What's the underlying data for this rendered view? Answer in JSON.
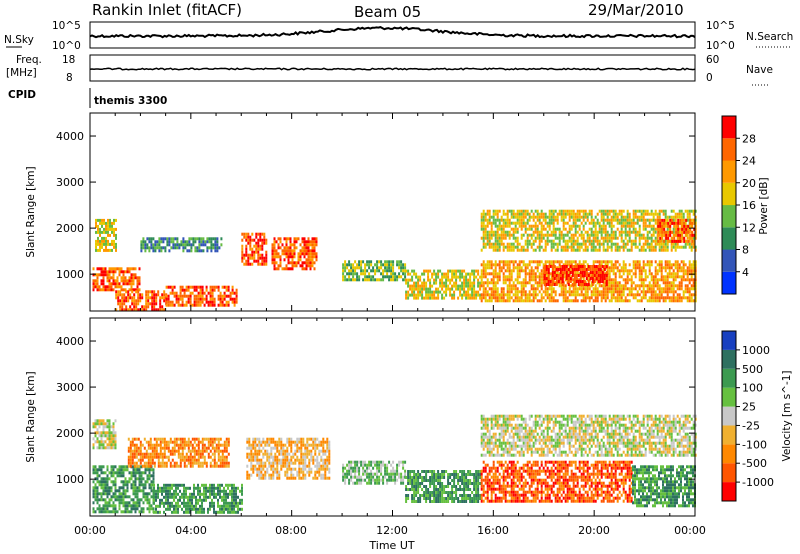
{
  "header": {
    "station": "Rankin Inlet (fitACF)",
    "beam": "Beam 05",
    "date": "29/Mar/2010"
  },
  "noise_panel": {
    "left_label": "N.Sky",
    "right_label": "N.Search",
    "left_ticks": [
      "10^5",
      "10^0"
    ],
    "right_ticks": [
      "10^5",
      "10^0"
    ]
  },
  "freq_panel": {
    "left_label_1": "Freq.",
    "left_label_2": "[MHz]",
    "right_label": "Nave",
    "left_ticks": [
      "18",
      "8"
    ],
    "right_ticks": [
      "60",
      "0"
    ]
  },
  "cpid_panel": {
    "label": "CPID",
    "value": "themis 3300"
  },
  "axes": {
    "x_ticks": [
      "00:00",
      "04:00",
      "08:00",
      "12:00",
      "16:00",
      "20:00",
      "00:00"
    ],
    "x_label": "Time UT",
    "y_label": "Slant Range [km]",
    "y_ticks": [
      "1000",
      "2000",
      "3000",
      "4000"
    ]
  },
  "power_scale": {
    "label": "Power [dB]",
    "ticks": [
      "4",
      "8",
      "12",
      "16",
      "20",
      "24",
      "28"
    ],
    "colors": [
      "#0033ff",
      "#3355b8",
      "#2e8b57",
      "#66bb44",
      "#e8c800",
      "#ff9900",
      "#ff6600",
      "#ff0000"
    ]
  },
  "velocity_scale": {
    "label": "Velocity [m s^-1]",
    "ticks": [
      "1000",
      "500",
      "100",
      "25",
      "-25",
      "-100",
      "-500",
      "-1000"
    ],
    "colors": [
      "#1840c0",
      "#2e7060",
      "#3c9a50",
      "#66c040",
      "#c8c8c8",
      "#f0b030",
      "#ff8800",
      "#ff5500",
      "#ff0000"
    ]
  },
  "chart_data": [
    {
      "type": "heatmap",
      "name": "power",
      "x_range_hours": [
        0,
        24
      ],
      "y_range_km": [
        200,
        4500
      ],
      "blobs": [
        {
          "t": [
            0.1,
            2.0
          ],
          "r": [
            650,
            1150
          ],
          "level": 6
        },
        {
          "t": [
            0.2,
            1.0
          ],
          "r": [
            1500,
            2200
          ],
          "level": 4
        },
        {
          "t": [
            1.0,
            3.0
          ],
          "r": [
            250,
            650
          ],
          "level": 6
        },
        {
          "t": [
            2.0,
            5.2
          ],
          "r": [
            1500,
            1800
          ],
          "level": 2
        },
        {
          "t": [
            3.0,
            5.8
          ],
          "r": [
            300,
            750
          ],
          "level": 6
        },
        {
          "t": [
            6.0,
            7.0
          ],
          "r": [
            1200,
            1900
          ],
          "level": 6
        },
        {
          "t": [
            7.2,
            9.0
          ],
          "r": [
            1100,
            1800
          ],
          "level": 6
        },
        {
          "t": [
            10.0,
            12.5
          ],
          "r": [
            900,
            1300
          ],
          "level": 3
        },
        {
          "t": [
            12.5,
            15.5
          ],
          "r": [
            500,
            1100
          ],
          "level": 4
        },
        {
          "t": [
            15.5,
            24.0
          ],
          "r": [
            400,
            1300
          ],
          "level": 5
        },
        {
          "t": [
            18.0,
            20.5
          ],
          "r": [
            800,
            1200
          ],
          "level": 7
        },
        {
          "t": [
            15.5,
            24.0
          ],
          "r": [
            1500,
            2400
          ],
          "level": 4
        },
        {
          "t": [
            22.5,
            24.0
          ],
          "r": [
            1700,
            2200
          ],
          "level": 6
        }
      ]
    },
    {
      "type": "heatmap",
      "name": "velocity",
      "x_range_hours": [
        0,
        24
      ],
      "y_range_km": [
        200,
        4500
      ],
      "blobs": [
        {
          "t": [
            0.1,
            1.0
          ],
          "r": [
            1700,
            2300
          ],
          "level": 4
        },
        {
          "t": [
            0.1,
            2.5
          ],
          "r": [
            300,
            1300
          ],
          "level": 2
        },
        {
          "t": [
            1.5,
            5.5
          ],
          "r": [
            1300,
            1900
          ],
          "level": 6
        },
        {
          "t": [
            2.5,
            6.0
          ],
          "r": [
            300,
            900
          ],
          "level": 2
        },
        {
          "t": [
            6.2,
            9.5
          ],
          "r": [
            1000,
            1900
          ],
          "level": 5
        },
        {
          "t": [
            10.0,
            12.5
          ],
          "r": [
            900,
            1400
          ],
          "level": 3
        },
        {
          "t": [
            12.5,
            15.5
          ],
          "r": [
            500,
            1200
          ],
          "level": 2
        },
        {
          "t": [
            15.5,
            21.5
          ],
          "r": [
            500,
            1400
          ],
          "level": 7
        },
        {
          "t": [
            21.5,
            24.0
          ],
          "r": [
            400,
            1300
          ],
          "level": 2
        },
        {
          "t": [
            15.5,
            24.0
          ],
          "r": [
            1500,
            2400
          ],
          "level": 4
        }
      ]
    }
  ]
}
